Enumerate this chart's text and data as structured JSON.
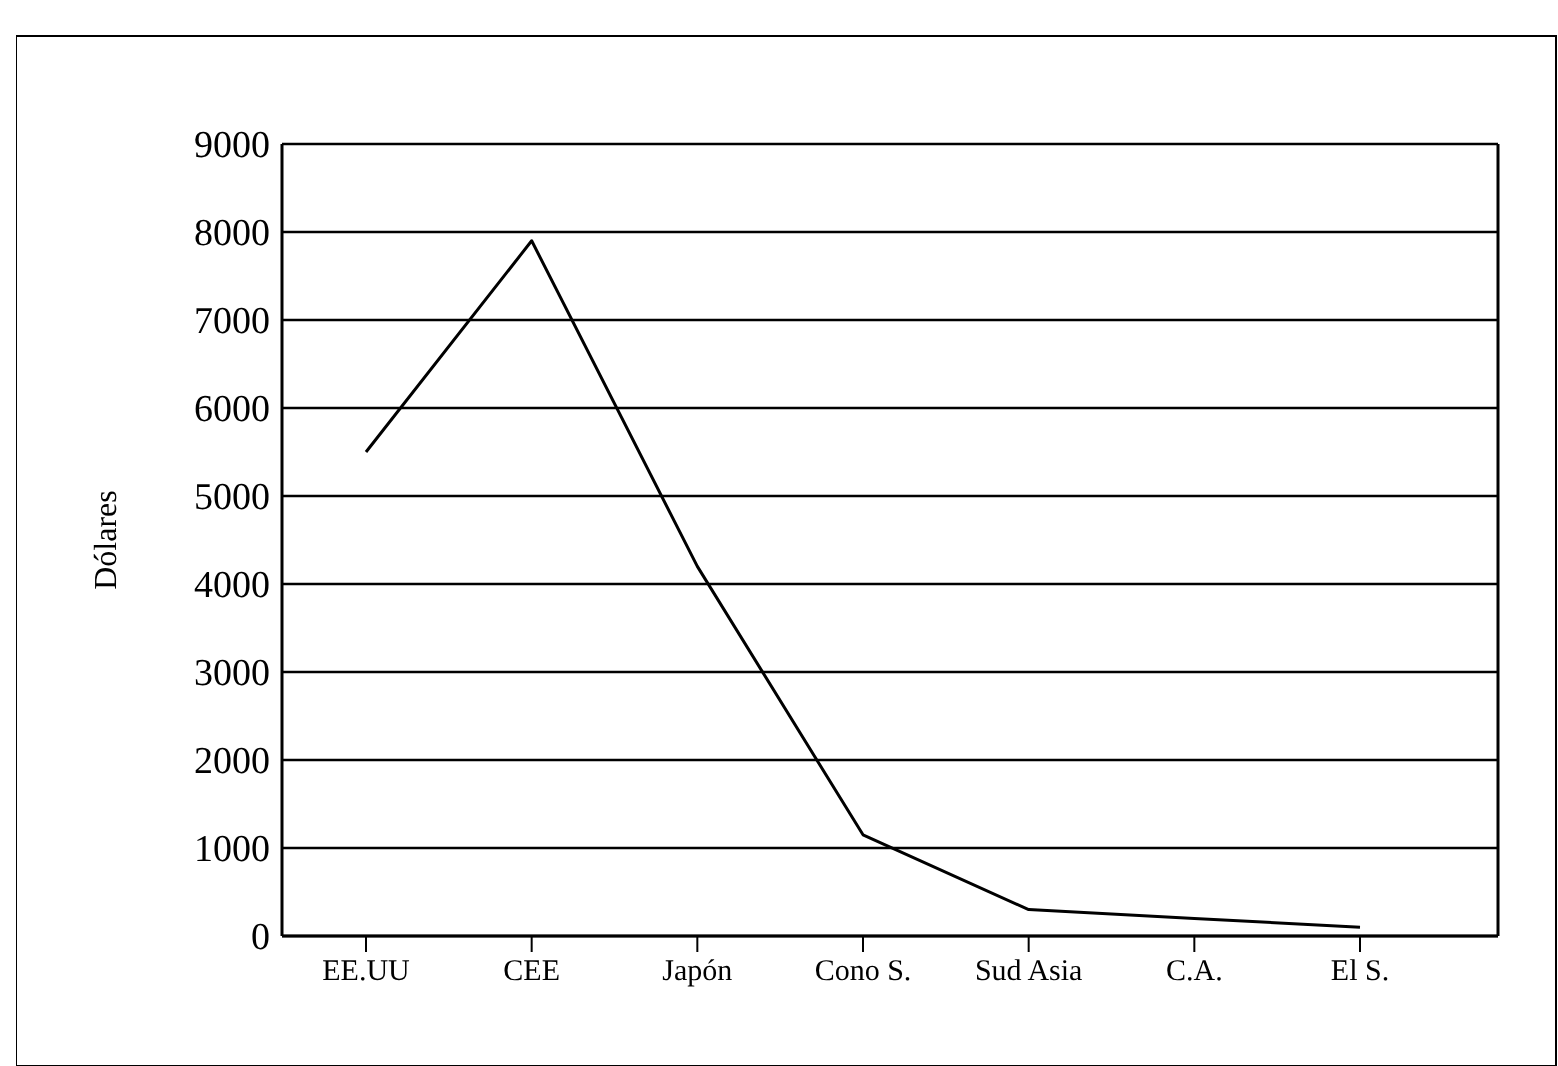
{
  "chart_data": {
    "type": "line",
    "ylabel": "Dólares",
    "categories": [
      "EE.UU",
      "CEE",
      "Japón",
      "Cono S.",
      "Sud Asia",
      "C.A.",
      "El S."
    ],
    "series": [
      {
        "color": "#000000",
        "values": [
          5500,
          7900,
          4200,
          1150,
          300,
          200,
          100
        ]
      }
    ],
    "ylim": [
      0,
      9000
    ],
    "yticks": [
      0,
      1000,
      2000,
      3000,
      4000,
      5000,
      6000,
      7000,
      8000,
      9000
    ],
    "grid": "y",
    "marker": "none",
    "line_style": "solid"
  }
}
